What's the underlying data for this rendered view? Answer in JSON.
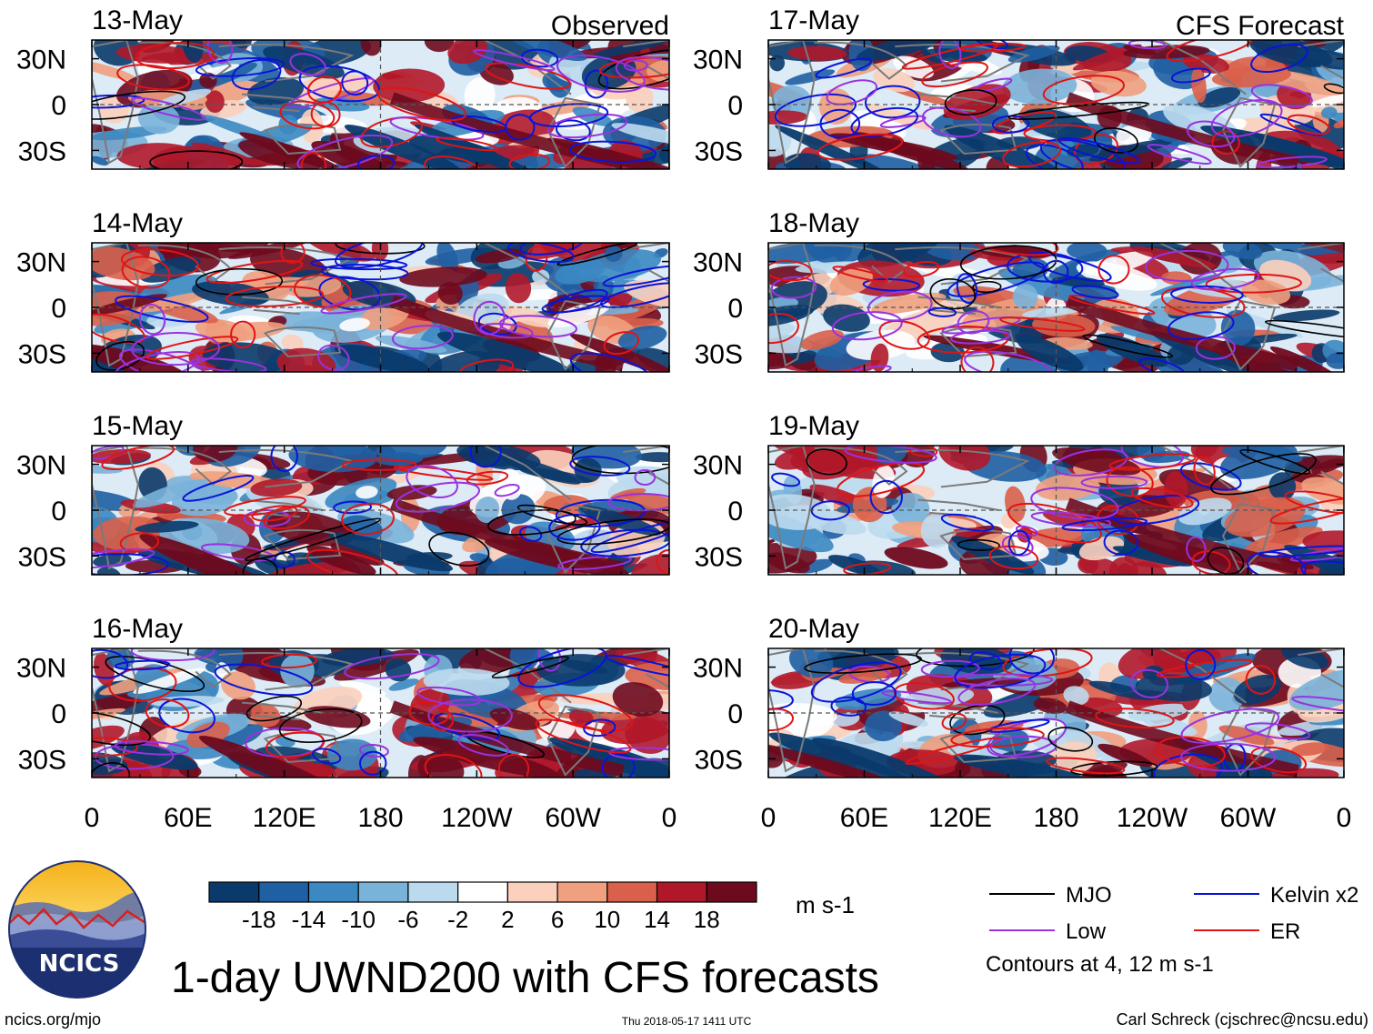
{
  "title": "1-day UWND200 with CFS forecasts",
  "columns": {
    "left_label": "Observed",
    "right_label": "CFS Forecast"
  },
  "panels": {
    "left": [
      {
        "date": "13-May"
      },
      {
        "date": "14-May"
      },
      {
        "date": "15-May"
      },
      {
        "date": "16-May"
      }
    ],
    "right": [
      {
        "date": "17-May"
      },
      {
        "date": "18-May"
      },
      {
        "date": "19-May"
      },
      {
        "date": "20-May"
      }
    ]
  },
  "lat_labels": [
    "30N",
    "0",
    "30S"
  ],
  "lon_labels": [
    "0",
    "60E",
    "120E",
    "180",
    "120W",
    "60W",
    "0"
  ],
  "colorbar": {
    "unit": "m s-1",
    "tick_labels": [
      "-18",
      "-14",
      "-10",
      "-6",
      "-2",
      "2",
      "6",
      "10",
      "14",
      "18"
    ],
    "colors": [
      "#0a3a6b",
      "#1f5fa3",
      "#3b88c2",
      "#7ab3d9",
      "#bcdaee",
      "#ffffff",
      "#fbd0bd",
      "#f0a07e",
      "#d9604a",
      "#b0182a",
      "#6e0a1e"
    ]
  },
  "legend": {
    "items": [
      {
        "label": "MJO",
        "color": "#000000"
      },
      {
        "label": "Kelvin x2",
        "color": "#0a14d8"
      },
      {
        "label": "Low",
        "color": "#9932e0"
      },
      {
        "label": "ER",
        "color": "#e01414"
      }
    ],
    "note": "Contours at 4, 12 m s-1"
  },
  "logo": {
    "text": "NCICS"
  },
  "footer": {
    "left": "ncics.org/mjo",
    "center": "Thu 2018-05-17 1411 UTC",
    "right": "Carl Schreck (cjschrec@ncsu.edu)"
  }
}
